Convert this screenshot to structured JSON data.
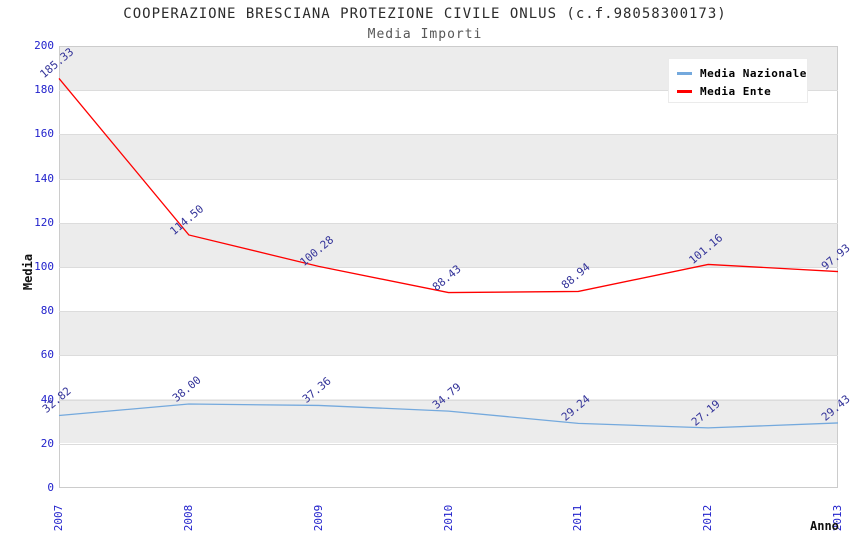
{
  "header": {
    "title": "COOPERAZIONE BRESCIANA PROTEZIONE CIVILE ONLUS (c.f.98058300173)",
    "subtitle": "Media Importi"
  },
  "colors": {
    "axis_tick_label": "#2222cc",
    "data_label": "#333399",
    "band_gray": "#ececec",
    "plot_border": "#cccccc",
    "media_nazionale_line": "#74a9dd",
    "media_ente_line": "#ff0000"
  },
  "chart_data": {
    "type": "line",
    "title": "COOPERAZIONE BRESCIANA PROTEZIONE CIVILE ONLUS (c.f.98058300173)",
    "subtitle": "Media Importi",
    "xlabel": "Anno",
    "ylabel": "Media",
    "categories": [
      "2007",
      "2008",
      "2009",
      "2010",
      "2011",
      "2012",
      "2013"
    ],
    "series": [
      {
        "name": "Media Nazionale",
        "color": "#74a9dd",
        "values": [
          32.82,
          38.0,
          37.36,
          34.79,
          29.24,
          27.19,
          29.43
        ],
        "labels": [
          "32.82",
          "38.00",
          "37.36",
          "34.79",
          "29.24",
          "27.19",
          "29.43"
        ]
      },
      {
        "name": "Media Ente",
        "color": "#ff0000",
        "values": [
          185.33,
          114.5,
          100.28,
          88.43,
          88.94,
          101.16,
          97.93
        ],
        "labels": [
          "185.33",
          "114.50",
          "100.28",
          "88.43",
          "88.94",
          "101.16",
          "97.93"
        ]
      }
    ],
    "ylim": [
      0,
      200
    ],
    "yticks": [
      0,
      20,
      40,
      60,
      80,
      100,
      120,
      140,
      160,
      180,
      200
    ],
    "legend_position": "top-right",
    "grid": "horizontal-bands-every-20"
  }
}
